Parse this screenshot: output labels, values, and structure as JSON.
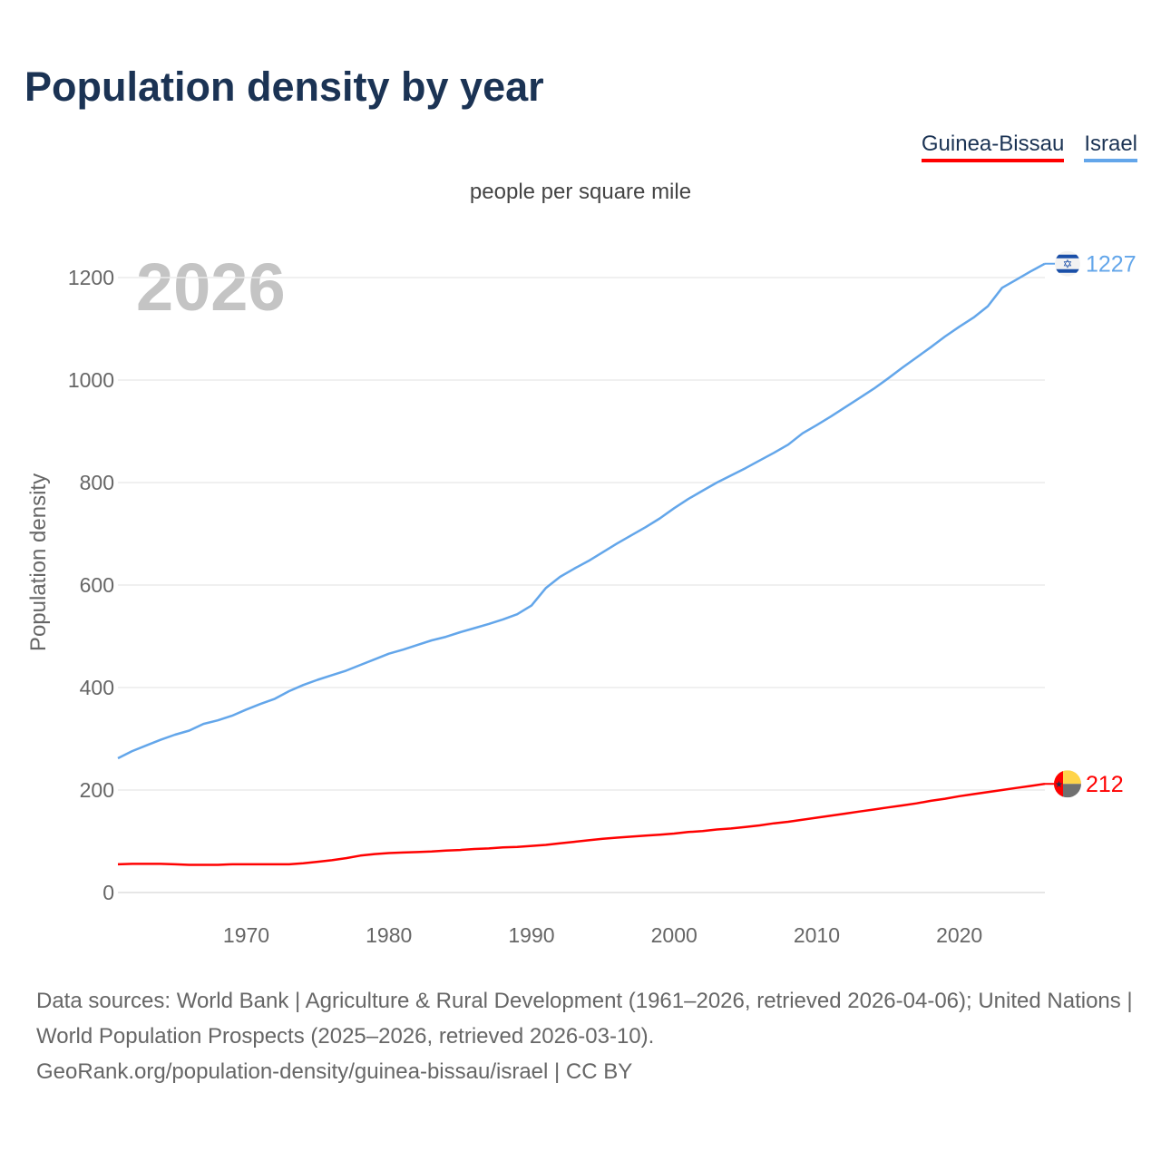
{
  "title": "Population density by year",
  "footer": {
    "sources": "Data sources: World Bank | Agriculture & Rural Development (1961–2026, retrieved 2026-04-06); United Nations | World Population Prospects (2025–2026, retrieved 2026-03-10).",
    "link": "GeoRank.org/population-density/guinea-bissau/israel | CC BY"
  },
  "chart_data": {
    "type": "line",
    "title": "Population density by year",
    "subtitle": "people per square mile",
    "ylabel": "Population density",
    "xlabel": "",
    "year_watermark": "2026",
    "xlim": [
      1961,
      2026
    ],
    "ylim": [
      0,
      1200
    ],
    "xticks": [
      1970,
      1980,
      1990,
      2000,
      2010,
      2020
    ],
    "yticks": [
      0,
      200,
      400,
      600,
      800,
      1000,
      1200
    ],
    "grid": true,
    "legend_position": "top-right",
    "x": [
      1961,
      1962,
      1963,
      1964,
      1965,
      1966,
      1967,
      1968,
      1969,
      1970,
      1971,
      1972,
      1973,
      1974,
      1975,
      1976,
      1977,
      1978,
      1979,
      1980,
      1981,
      1982,
      1983,
      1984,
      1985,
      1986,
      1987,
      1988,
      1989,
      1990,
      1991,
      1992,
      1993,
      1994,
      1995,
      1996,
      1997,
      1998,
      1999,
      2000,
      2001,
      2002,
      2003,
      2004,
      2005,
      2006,
      2007,
      2008,
      2009,
      2010,
      2011,
      2012,
      2013,
      2014,
      2015,
      2016,
      2017,
      2018,
      2019,
      2020,
      2021,
      2022,
      2023,
      2024,
      2025,
      2026
    ],
    "series": [
      {
        "name": "Guinea-Bissau",
        "color": "#ff0000",
        "end_label": "212",
        "flag": "guinea-bissau-flag",
        "values": [
          55,
          56,
          56,
          56,
          55,
          54,
          54,
          54,
          55,
          55,
          55,
          55,
          55,
          57,
          60,
          63,
          67,
          72,
          75,
          77,
          78,
          79,
          80,
          82,
          83,
          85,
          86,
          88,
          89,
          91,
          93,
          96,
          99,
          102,
          105,
          107,
          109,
          111,
          113,
          115,
          118,
          120,
          123,
          125,
          128,
          131,
          135,
          138,
          142,
          146,
          150,
          154,
          158,
          162,
          166,
          170,
          174,
          179,
          183,
          188,
          192,
          196,
          200,
          204,
          208,
          212
        ]
      },
      {
        "name": "Israel",
        "color": "#63a6ea",
        "end_label": "1227",
        "flag": "israel-flag",
        "values": [
          262,
          276,
          287,
          298,
          308,
          316,
          329,
          336,
          345,
          357,
          368,
          378,
          393,
          405,
          415,
          424,
          433,
          444,
          455,
          466,
          474,
          483,
          492,
          499,
          508,
          516,
          524,
          533,
          543,
          560,
          594,
          616,
          632,
          647,
          664,
          681,
          697,
          713,
          730,
          750,
          768,
          784,
          800,
          814,
          828,
          843,
          858,
          874,
          896,
          912,
          929,
          947,
          965,
          983,
          1003,
          1024,
          1044,
          1064,
          1085,
          1104,
          1122,
          1144,
          1180,
          1196,
          1212,
          1227
        ]
      }
    ]
  }
}
